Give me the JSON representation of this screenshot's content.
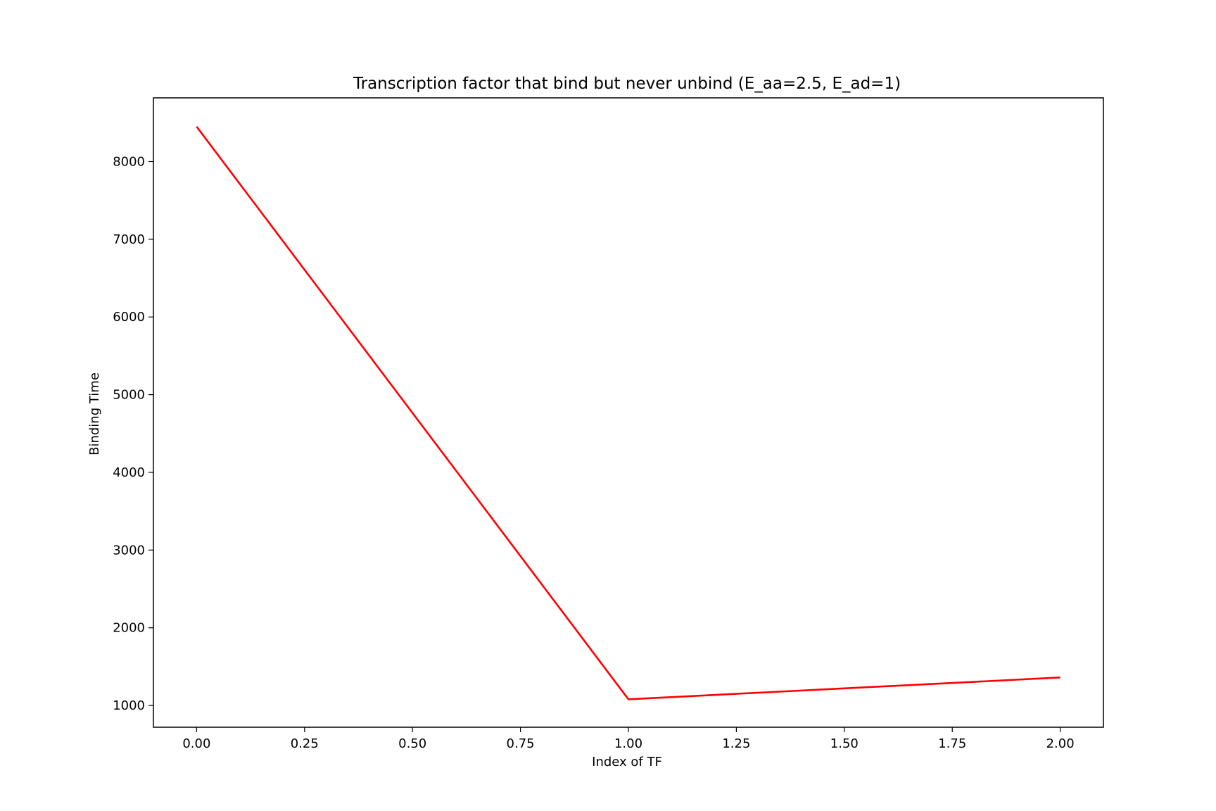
{
  "chart_data": {
    "type": "line",
    "title": "Transcription factor that bind but never unbind (E_aa=2.5, E_ad=1)",
    "xlabel": "Index of TF",
    "ylabel": "Binding Time",
    "xlim": [
      -0.1,
      2.1
    ],
    "ylim": [
      720,
      8820
    ],
    "x_ticks": [
      0.0,
      0.25,
      0.5,
      0.75,
      1.0,
      1.25,
      1.5,
      1.75,
      2.0
    ],
    "x_tick_labels": [
      "0.00",
      "0.25",
      "0.50",
      "0.75",
      "1.00",
      "1.25",
      "1.50",
      "1.75",
      "2.00"
    ],
    "y_ticks": [
      1000,
      2000,
      3000,
      4000,
      5000,
      6000,
      7000,
      8000
    ],
    "y_tick_labels": [
      "1000",
      "2000",
      "3000",
      "4000",
      "5000",
      "6000",
      "7000",
      "8000"
    ],
    "grid": false,
    "series": [
      {
        "x": [
          0,
          1,
          2
        ],
        "y": [
          8450,
          1080,
          1360
        ],
        "color": "#ff0000"
      }
    ]
  }
}
